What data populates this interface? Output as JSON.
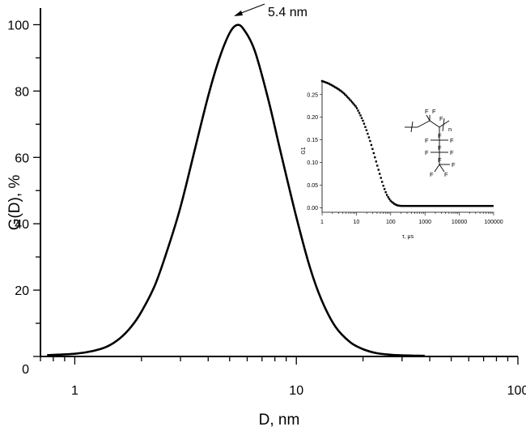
{
  "chart_data": [
    {
      "type": "line",
      "title": "",
      "xlabel": "D, nm",
      "ylabel": "G(D), %",
      "x_scale": "log",
      "xlim": [
        0.7,
        100
      ],
      "ylim": [
        0,
        105
      ],
      "x_ticks": [
        "1",
        "10",
        "100"
      ],
      "y_ticks": [
        "0",
        "20",
        "40",
        "60",
        "80",
        "100"
      ],
      "annotation": "5.4 nm",
      "series": [
        {
          "x": [
            0.75,
            1.0,
            1.2,
            1.4,
            1.6,
            1.8,
            2.0,
            2.3,
            2.6,
            3.0,
            3.5,
            4.0,
            4.5,
            5.0,
            5.4,
            5.8,
            6.5,
            7.5,
            8.5,
            10.0,
            11.5,
            13.0,
            15.0,
            17.5,
            20.0,
            23.0,
            27.0,
            32.0,
            38.0
          ],
          "y": [
            0.4,
            0.8,
            1.6,
            3.0,
            5.5,
            9.0,
            13.5,
            21.5,
            31.5,
            45.0,
            63.0,
            78.5,
            90.0,
            97.5,
            99.9,
            98.5,
            92.0,
            77.0,
            61.5,
            42.0,
            27.0,
            17.0,
            9.0,
            4.3,
            2.2,
            1.0,
            0.5,
            0.3,
            0.2
          ]
        }
      ]
    },
    {
      "type": "scatter",
      "title": "",
      "xlabel": "τ, μs",
      "ylabel": "G1",
      "x_scale": "log",
      "xlim": [
        1,
        100000
      ],
      "ylim": [
        -0.01,
        0.28
      ],
      "x_ticks": [
        "1",
        "10",
        "100",
        "1000",
        "10000",
        "100000"
      ],
      "y_ticks": [
        "0.00",
        "0.05",
        "0.10",
        "0.15",
        "0.20",
        "0.25"
      ],
      "series": [
        {
          "x": [
            1.0,
            1.5,
            2.0,
            3.0,
            4.0,
            5.0,
            7.0,
            10.0,
            13.0,
            16.0,
            20.0,
            25.0,
            30.0,
            40.0,
            50.0,
            60.0,
            70.0,
            80.0,
            100.0,
            130.0,
            160.0,
            200.0,
            300.0,
            500.0,
            1000.0,
            3000.0,
            10000.0,
            30000.0,
            100000.0
          ],
          "y": [
            0.28,
            0.275,
            0.27,
            0.262,
            0.255,
            0.248,
            0.236,
            0.222,
            0.205,
            0.19,
            0.17,
            0.148,
            0.128,
            0.095,
            0.07,
            0.05,
            0.036,
            0.026,
            0.015,
            0.008,
            0.005,
            0.004,
            0.004,
            0.004,
            0.004,
            0.004,
            0.004,
            0.004,
            0.004
          ]
        }
      ]
    }
  ],
  "structure": {
    "labels": [
      "F",
      "F",
      "F",
      "n",
      "F",
      "F",
      "F",
      "F",
      "F",
      "F",
      "F",
      "F",
      "F",
      "F"
    ]
  }
}
